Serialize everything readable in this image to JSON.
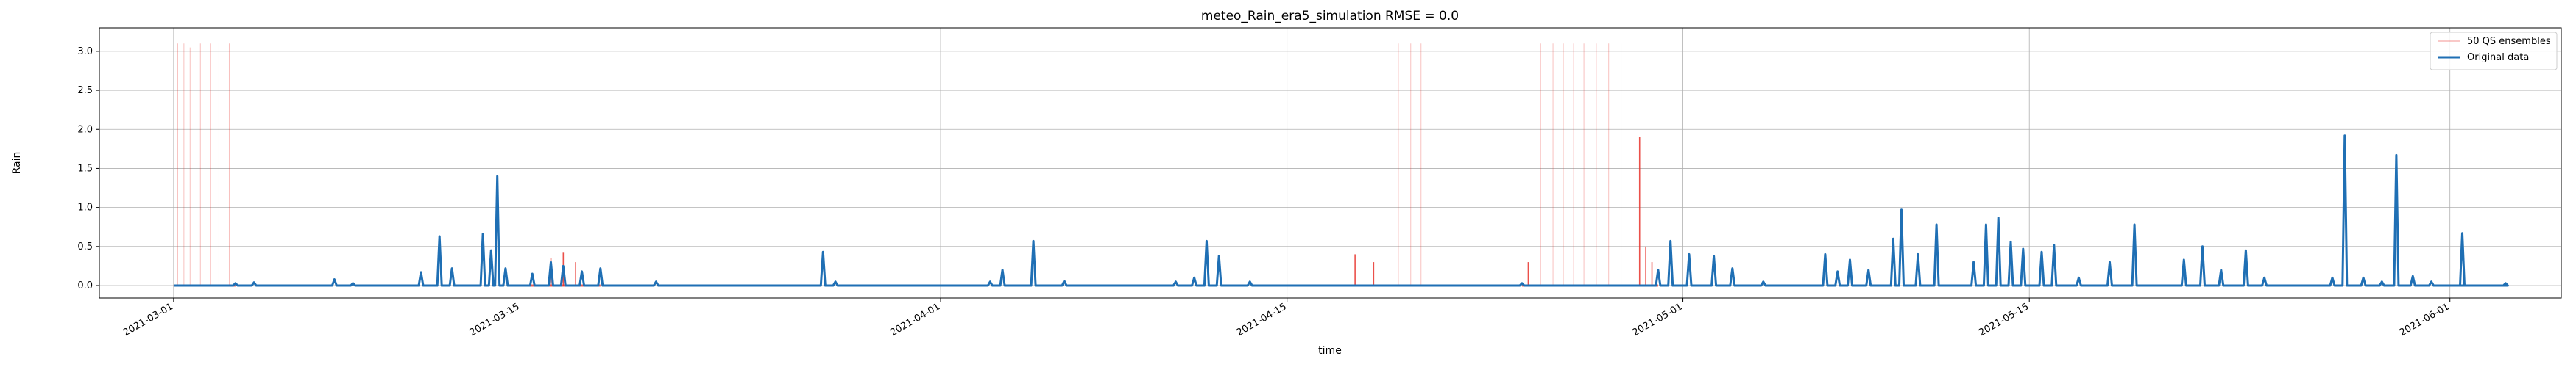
{
  "chart_data": {
    "type": "line",
    "title": "meteo_Rain_era5_simulation RMSE = 0.0",
    "xlabel": "time",
    "ylabel": "Rain",
    "xlim": [
      "2021-02-26T00:00",
      "2021-06-05T12:00"
    ],
    "ylim": [
      -0.16,
      3.3
    ],
    "grid": true,
    "legend_position": "top-right",
    "x_ticks": [
      "2021-03-01",
      "2021-03-15",
      "2021-04-01",
      "2021-04-15",
      "2021-05-01",
      "2021-05-15",
      "2021-06-01"
    ],
    "y_ticks": [
      "0.0",
      "0.5",
      "1.0",
      "1.5",
      "2.0",
      "2.5",
      "3.0"
    ],
    "x_range": [
      "2021-03-01",
      "2021-06-01"
    ],
    "series": [
      {
        "name": "Original data",
        "color": "#1f6fb4",
        "baseline": 0.0,
        "events": [
          [
            "2021-03-03T12:00",
            0.03
          ],
          [
            "2021-03-04T06:00",
            0.04
          ],
          [
            "2021-03-07T12:00",
            0.08
          ],
          [
            "2021-03-08T06:00",
            0.03
          ],
          [
            "2021-03-11T00:00",
            0.17
          ],
          [
            "2021-03-11T18:00",
            0.63
          ],
          [
            "2021-03-12T06:00",
            0.22
          ],
          [
            "2021-03-13T12:00",
            0.66
          ],
          [
            "2021-03-13T20:00",
            0.45
          ],
          [
            "2021-03-14T02:00",
            1.4
          ],
          [
            "2021-03-14T10:00",
            0.22
          ],
          [
            "2021-03-15T12:00",
            0.15
          ],
          [
            "2021-03-16T06:00",
            0.3
          ],
          [
            "2021-03-16T18:00",
            0.25
          ],
          [
            "2021-03-17T12:00",
            0.18
          ],
          [
            "2021-03-18T06:00",
            0.22
          ],
          [
            "2021-03-20T12:00",
            0.05
          ],
          [
            "2021-03-27T06:00",
            0.43
          ],
          [
            "2021-03-27T18:00",
            0.05
          ],
          [
            "2021-04-03T00:00",
            0.05
          ],
          [
            "2021-04-03T12:00",
            0.2
          ],
          [
            "2021-04-04T18:00",
            0.57
          ],
          [
            "2021-04-06T00:00",
            0.06
          ],
          [
            "2021-04-10T12:00",
            0.05
          ],
          [
            "2021-04-11T06:00",
            0.1
          ],
          [
            "2021-04-11T18:00",
            0.57
          ],
          [
            "2021-04-12T06:00",
            0.38
          ],
          [
            "2021-04-13T12:00",
            0.05
          ],
          [
            "2021-04-24T12:00",
            0.03
          ],
          [
            "2021-04-30T00:00",
            0.2
          ],
          [
            "2021-04-30T12:00",
            0.57
          ],
          [
            "2021-05-01T06:00",
            0.4
          ],
          [
            "2021-05-02T06:00",
            0.38
          ],
          [
            "2021-05-03T00:00",
            0.22
          ],
          [
            "2021-05-04T06:00",
            0.05
          ],
          [
            "2021-05-06T18:00",
            0.4
          ],
          [
            "2021-05-07T06:00",
            0.18
          ],
          [
            "2021-05-07T18:00",
            0.33
          ],
          [
            "2021-05-08T12:00",
            0.2
          ],
          [
            "2021-05-09T12:00",
            0.6
          ],
          [
            "2021-05-09T20:00",
            0.97
          ],
          [
            "2021-05-10T12:00",
            0.4
          ],
          [
            "2021-05-11T06:00",
            0.78
          ],
          [
            "2021-05-12T18:00",
            0.3
          ],
          [
            "2021-05-13T06:00",
            0.78
          ],
          [
            "2021-05-13T18:00",
            0.87
          ],
          [
            "2021-05-14T06:00",
            0.56
          ],
          [
            "2021-05-14T18:00",
            0.47
          ],
          [
            "2021-05-15T12:00",
            0.43
          ],
          [
            "2021-05-16T00:00",
            0.52
          ],
          [
            "2021-05-17T00:00",
            0.1
          ],
          [
            "2021-05-18T06:00",
            0.3
          ],
          [
            "2021-05-19T06:00",
            0.78
          ],
          [
            "2021-05-21T06:00",
            0.33
          ],
          [
            "2021-05-22T00:00",
            0.5
          ],
          [
            "2021-05-22T18:00",
            0.2
          ],
          [
            "2021-05-23T18:00",
            0.45
          ],
          [
            "2021-05-24T12:00",
            0.1
          ],
          [
            "2021-05-27T06:00",
            0.1
          ],
          [
            "2021-05-27T18:00",
            1.92
          ],
          [
            "2021-05-28T12:00",
            0.1
          ],
          [
            "2021-05-29T06:00",
            0.05
          ],
          [
            "2021-05-29T20:00",
            1.67
          ],
          [
            "2021-05-30T12:00",
            0.12
          ],
          [
            "2021-05-31T06:00",
            0.05
          ],
          [
            "2021-06-01T12:00",
            0.67
          ],
          [
            "2021-06-03T06:00",
            0.03
          ]
        ]
      },
      {
        "name": "50 QS ensembles",
        "color": "#e8312a",
        "windows": [
          [
            "2021-03-01",
            "2021-03-03T12:00"
          ],
          [
            "2021-03-15T06:00",
            "2021-03-18T06:00"
          ],
          [
            "2021-04-17T12:00",
            "2021-04-21T12:00"
          ],
          [
            "2021-04-24T12:00",
            "2021-04-30T00:00"
          ]
        ],
        "spikes": [
          [
            "2021-03-01T04:00",
            3.1
          ],
          [
            "2021-03-01T10:00",
            3.1
          ],
          [
            "2021-03-01T16:00",
            3.05
          ],
          [
            "2021-03-02T02:00",
            3.1
          ],
          [
            "2021-03-02T12:00",
            3.1
          ],
          [
            "2021-03-02T20:00",
            3.1
          ],
          [
            "2021-03-03T06:00",
            3.1
          ],
          [
            "2021-03-16T06:00",
            0.35
          ],
          [
            "2021-03-16T18:00",
            0.42
          ],
          [
            "2021-03-17T06:00",
            0.3
          ],
          [
            "2021-04-17T18:00",
            0.4
          ],
          [
            "2021-04-18T12:00",
            0.3
          ],
          [
            "2021-04-19T12:00",
            3.1
          ],
          [
            "2021-04-20T00:00",
            3.1
          ],
          [
            "2021-04-20T10:00",
            3.1
          ],
          [
            "2021-04-24T18:00",
            0.3
          ],
          [
            "2021-04-25T06:00",
            3.1
          ],
          [
            "2021-04-25T18:00",
            3.1
          ],
          [
            "2021-04-26T04:00",
            3.1
          ],
          [
            "2021-04-26T14:00",
            3.1
          ],
          [
            "2021-04-27T00:00",
            3.1
          ],
          [
            "2021-04-27T12:00",
            3.1
          ],
          [
            "2021-04-28T00:00",
            3.1
          ],
          [
            "2021-04-28T12:00",
            3.1
          ],
          [
            "2021-04-29T06:00",
            1.9
          ],
          [
            "2021-04-29T12:00",
            0.5
          ],
          [
            "2021-04-29T18:00",
            0.3
          ]
        ]
      }
    ]
  }
}
